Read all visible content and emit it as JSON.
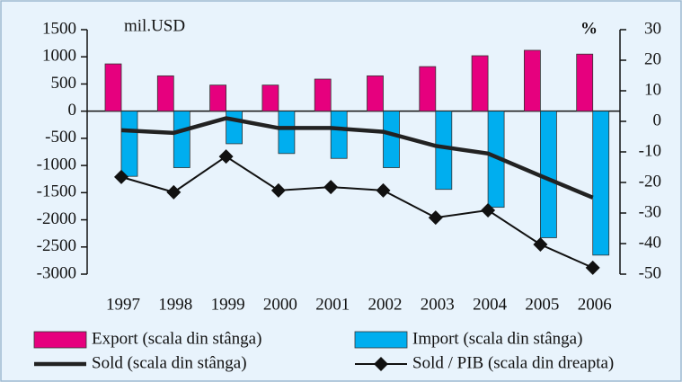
{
  "chart_data": {
    "type": "combo",
    "y_label": "mil.USD",
    "y2_label": "%",
    "categories": [
      "1997",
      "1998",
      "1999",
      "2000",
      "2001",
      "2002",
      "2003",
      "2004",
      "2005",
      "2006"
    ],
    "series": [
      {
        "name": "Export (scala din stânga)",
        "type": "bar",
        "color": "#e6007e",
        "values": [
          870,
          650,
          480,
          480,
          590,
          650,
          820,
          1020,
          1120,
          1050
        ]
      },
      {
        "name": "Import (scala din stânga)",
        "type": "bar",
        "color": "#00aeef",
        "values": [
          -1200,
          -1040,
          -600,
          -780,
          -870,
          -1040,
          -1440,
          -1770,
          -2330,
          -2650
        ]
      },
      {
        "name": "Sold (scala din stânga)",
        "type": "line",
        "color": "#222222",
        "values": [
          -350,
          -400,
          -130,
          -310,
          -310,
          -380,
          -640,
          -780,
          -1190,
          -1590
        ]
      },
      {
        "name": "Sold / PIB (scala din dreapta)",
        "type": "line",
        "marker": "diamond",
        "axis": "y2",
        "color": "#111111",
        "values": [
          -18.2,
          -23.2,
          -11.5,
          -22.6,
          -21.5,
          -22.6,
          -31.5,
          -29.1,
          -40.3,
          -47.9
        ]
      }
    ],
    "ylim": [
      -3000,
      1500
    ],
    "yticks": [
      1500,
      1000,
      500,
      0,
      -500,
      -1000,
      -1500,
      -2000,
      -2500,
      -3000
    ],
    "y2lim": [
      -50,
      30
    ],
    "y2ticks": [
      30,
      20,
      10,
      0,
      -10,
      -20,
      -30,
      -40,
      -50
    ]
  }
}
